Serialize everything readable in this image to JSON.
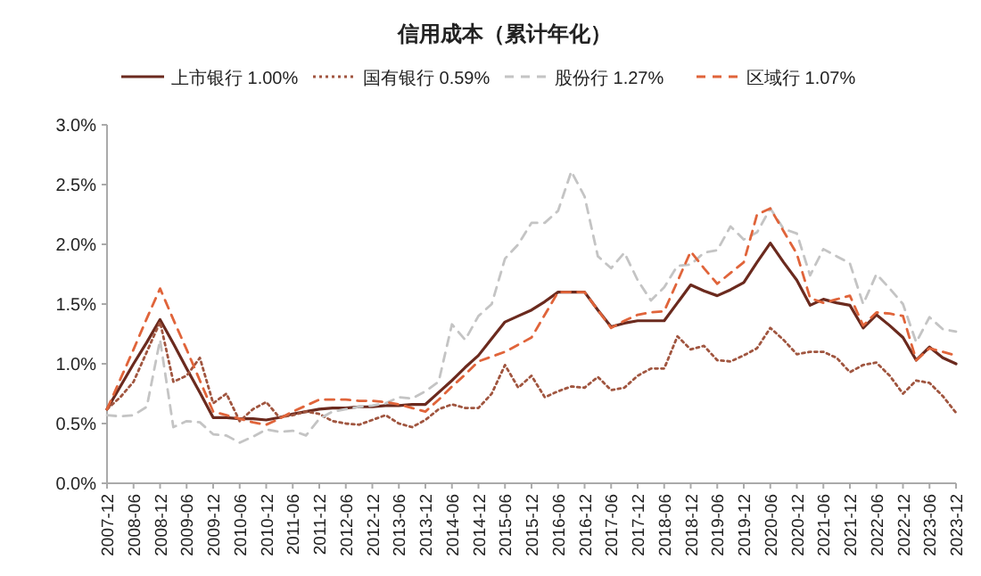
{
  "chart_data": {
    "type": "line",
    "title": "信用成本（累计年化）",
    "legend": "top",
    "categories": [
      "2007-12",
      null,
      "2008-06",
      null,
      "2008-12",
      null,
      "2009-06",
      null,
      "2009-12",
      null,
      "2010-06",
      null,
      "2010-12",
      null,
      "2011-06",
      null,
      "2011-12",
      null,
      "2012-06",
      null,
      "2012-12",
      null,
      "2013-06",
      null,
      "2013-12",
      null,
      "2014-06",
      null,
      "2014-12",
      null,
      "2015-06",
      null,
      "2015-12",
      null,
      "2016-06",
      null,
      "2016-12",
      null,
      "2017-06",
      null,
      "2017-12",
      null,
      "2018-06",
      null,
      "2018-12",
      null,
      "2019-06",
      null,
      "2019-12",
      null,
      "2020-06",
      null,
      "2020-12",
      null,
      "2021-06",
      null,
      "2021-12",
      null,
      "2022-06",
      null,
      "2022-12",
      null,
      "2023-06",
      null,
      "2023-12"
    ],
    "ylim": [
      0,
      3
    ],
    "yticks": [
      {
        "value": 0,
        "label": "0.0%"
      },
      {
        "value": 0.5,
        "label": "0.5%"
      },
      {
        "value": 1,
        "label": "1.0%"
      },
      {
        "value": 1.5,
        "label": "1.5%"
      },
      {
        "value": 2,
        "label": "2.0%"
      },
      {
        "value": 2.5,
        "label": "2.5%"
      },
      {
        "value": 3,
        "label": "3.0%"
      }
    ],
    "series": [
      {
        "name": "上市银行 1.00%",
        "color": "#6b2a1e",
        "line_style": "solid",
        "values": [
          0.62,
          0.81,
          1.0,
          1.18,
          1.37,
          1.17,
          0.96,
          0.76,
          0.55,
          0.55,
          0.54,
          0.54,
          0.53,
          0.55,
          0.58,
          0.6,
          0.62,
          0.63,
          0.63,
          0.64,
          0.64,
          0.65,
          0.65,
          0.66,
          0.66,
          0.76,
          0.86,
          0.97,
          1.07,
          1.21,
          1.35,
          1.4,
          1.45,
          1.52,
          1.6,
          1.6,
          1.6,
          1.45,
          1.31,
          1.34,
          1.36,
          1.36,
          1.36,
          1.51,
          1.66,
          1.61,
          1.57,
          1.62,
          1.68,
          1.85,
          2.01,
          1.85,
          1.7,
          1.49,
          1.54,
          1.51,
          1.49,
          1.3,
          1.41,
          1.32,
          1.22,
          1.03,
          1.14,
          1.05,
          1.0
        ]
      },
      {
        "name": "国有银行 0.59%",
        "color": "#a0553f",
        "line_style": "dotted",
        "values": [
          0.62,
          0.72,
          0.85,
          1.1,
          1.35,
          0.85,
          0.9,
          1.05,
          0.67,
          0.75,
          0.52,
          0.62,
          0.68,
          0.55,
          0.57,
          0.6,
          0.58,
          0.52,
          0.5,
          0.49,
          0.53,
          0.57,
          0.5,
          0.47,
          0.53,
          0.62,
          0.66,
          0.63,
          0.63,
          0.75,
          0.99,
          0.8,
          0.9,
          0.72,
          0.77,
          0.81,
          0.8,
          0.89,
          0.78,
          0.8,
          0.9,
          0.96,
          0.96,
          1.23,
          1.12,
          1.15,
          1.03,
          1.02,
          1.07,
          1.13,
          1.3,
          1.2,
          1.08,
          1.1,
          1.1,
          1.05,
          0.93,
          0.99,
          1.01,
          0.9,
          0.75,
          0.86,
          0.84,
          0.73,
          0.59
        ]
      },
      {
        "name": "股份行 1.27%",
        "color": "#c4c4c4",
        "line_style": "dashed",
        "values": [
          0.57,
          0.56,
          0.57,
          0.64,
          1.2,
          0.47,
          0.52,
          0.51,
          0.41,
          0.4,
          0.34,
          0.39,
          0.45,
          0.43,
          0.44,
          0.4,
          0.54,
          0.6,
          0.62,
          0.64,
          0.65,
          0.67,
          0.72,
          0.71,
          0.77,
          0.85,
          1.33,
          1.2,
          1.4,
          1.5,
          1.88,
          2.0,
          2.18,
          2.18,
          2.28,
          2.61,
          2.4,
          1.9,
          1.8,
          1.93,
          1.7,
          1.53,
          1.64,
          1.82,
          1.83,
          1.93,
          1.95,
          2.15,
          2.04,
          2.1,
          2.3,
          2.13,
          2.09,
          1.74,
          1.96,
          1.9,
          1.84,
          1.5,
          1.75,
          1.63,
          1.5,
          1.18,
          1.39,
          1.29,
          1.27
        ]
      },
      {
        "name": "区域行 1.07%",
        "color": "#e0643a",
        "line_style": "dashed",
        "values": [
          0.62,
          0.87,
          1.12,
          1.38,
          1.63,
          1.37,
          1.12,
          0.86,
          0.6,
          0.57,
          0.54,
          0.51,
          0.49,
          0.54,
          0.6,
          0.65,
          0.7,
          0.7,
          0.7,
          0.69,
          0.69,
          0.68,
          0.66,
          0.63,
          0.6,
          0.7,
          0.81,
          0.91,
          1.02,
          1.06,
          1.1,
          1.16,
          1.22,
          1.41,
          1.6,
          1.6,
          1.6,
          1.45,
          1.3,
          1.36,
          1.41,
          1.43,
          1.44,
          1.69,
          1.94,
          1.8,
          1.67,
          1.76,
          1.85,
          2.25,
          2.3,
          2.11,
          1.92,
          1.55,
          1.51,
          1.54,
          1.57,
          1.32,
          1.43,
          1.42,
          1.4,
          1.03,
          1.13,
          1.1,
          1.07
        ]
      }
    ]
  }
}
